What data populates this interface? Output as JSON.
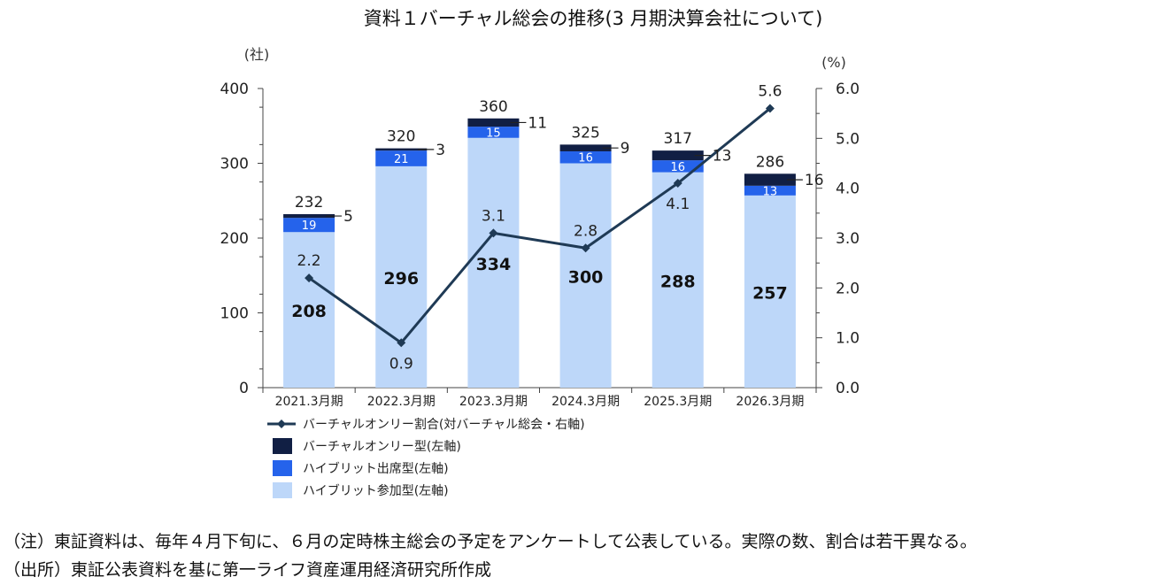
{
  "chart_data": {
    "type": "bar",
    "title": "資料１バーチャル総会の推移(3 月期決算会社について)",
    "left_unit": "(社)",
    "right_unit": "(%)",
    "categories": [
      "2021.3月期",
      "2022.3月期",
      "2023.3月期",
      "2024.3月期",
      "2025.3月期",
      "2026.3月期"
    ],
    "stacked": true,
    "series": [
      {
        "name": "ハイブリット参加型(左軸)",
        "axis": "left",
        "color": "#bdd7f9",
        "values": [
          208,
          296,
          334,
          300,
          288,
          257
        ]
      },
      {
        "name": "ハイブリット出席型(左軸)",
        "axis": "left",
        "color": "#2563eb",
        "values": [
          19,
          21,
          15,
          16,
          16,
          13
        ]
      },
      {
        "name": "バーチャルオンリー型(左軸)",
        "axis": "left",
        "color": "#111f44",
        "values": [
          5,
          3,
          11,
          9,
          13,
          16
        ]
      },
      {
        "name": "バーチャルオンリー割合(対バーチャル総会・右軸)",
        "axis": "right",
        "type": "line",
        "color": "#1f3a55",
        "values": [
          2.2,
          0.9,
          3.1,
          2.8,
          4.1,
          5.6
        ]
      }
    ],
    "totals": [
      232,
      320,
      360,
      325,
      317,
      286
    ],
    "ylim_left": [
      0,
      400
    ],
    "yticks_left": [
      "0",
      "100",
      "200",
      "300",
      "400"
    ],
    "ylim_right": [
      0,
      6
    ],
    "yticks_right": [
      "0.0",
      "1.0",
      "2.0",
      "3.0",
      "4.0",
      "5.0",
      "6.0"
    ],
    "grid": false,
    "legend_position": "bottom-left",
    "legend": [
      "バーチャルオンリー割合(対バーチャル総会・右軸)",
      "バーチャルオンリー型(左軸)",
      "ハイブリット出席型(左軸)",
      "ハイブリット参加型(左軸)"
    ]
  },
  "notes": {
    "line1": "（注）東証資料は、毎年４月下旬に、６月の定時株主総会の予定をアンケートして公表している。実際の数、割合は若干異なる。",
    "line2": "（出所）東証公表資料を基に第一ライフ資産運用経済研究所作成"
  }
}
